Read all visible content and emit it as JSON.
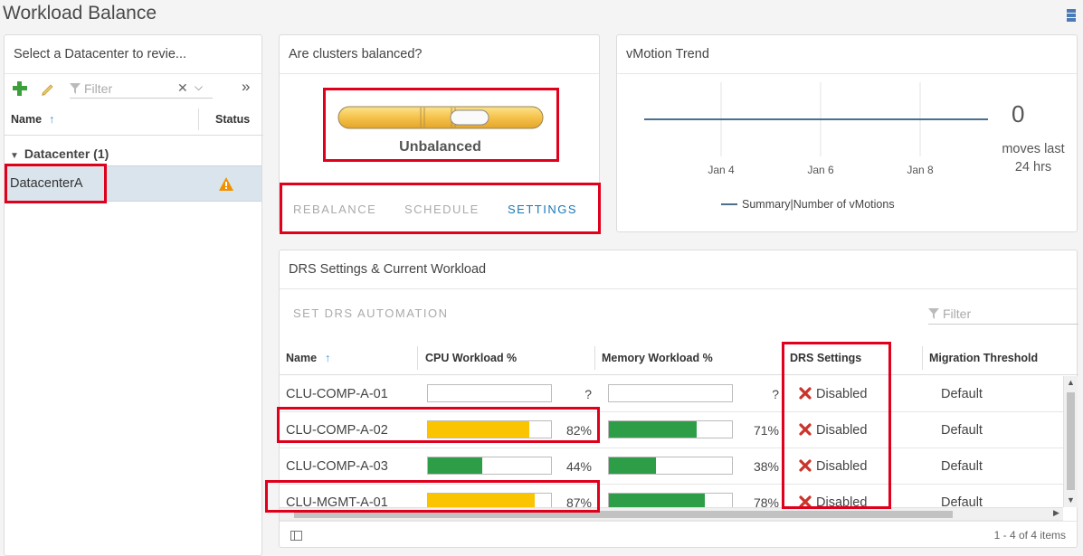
{
  "page": {
    "title": "Workload Balance"
  },
  "left_panel": {
    "header": "Select a Datacenter to revie...",
    "filter_placeholder": "Filter",
    "columns": {
      "name": "Name",
      "status": "Status"
    },
    "group": "Datacenter (1)",
    "row": {
      "name": "DatacenterA",
      "status_icon": "warning-icon"
    }
  },
  "balance_panel": {
    "header": "Are clusters balanced?",
    "status": "Unbalanced",
    "actions": [
      "REBALANCE",
      "SCHEDULE",
      "SETTINGS"
    ],
    "active_action": "SETTINGS",
    "colors": {
      "slider": "#f6c24a",
      "active": "#1a78b5"
    }
  },
  "vmotion_panel": {
    "header": "vMotion Trend",
    "moves_count": "0",
    "moves_text_line1": "moves last",
    "moves_text_line2": "24 hrs",
    "chart_data": {
      "type": "line",
      "x": [
        "Jan 4",
        "Jan 6",
        "Jan 8"
      ],
      "series": [
        {
          "name": "Summary|Number of vMotions",
          "values": [
            0,
            0,
            0
          ]
        }
      ],
      "xticks": [
        "Jan 4",
        "Jan 6",
        "Jan 8"
      ],
      "legend": "bottom",
      "line_color": "#4a6f8f"
    }
  },
  "drs_panel": {
    "header": "DRS Settings & Current Workload",
    "set_automation": "SET DRS AUTOMATION",
    "filter_placeholder": "Filter",
    "columns": {
      "name": "Name",
      "cpu": "CPU Workload %",
      "memory": "Memory Workload %",
      "drs": "DRS Settings",
      "migration": "Migration Threshold"
    },
    "rows": [
      {
        "name": "CLU-COMP-A-01",
        "cpu": null,
        "cpu_label": "?",
        "mem": null,
        "mem_label": "?",
        "drs": "Disabled",
        "migration": "Default"
      },
      {
        "name": "CLU-COMP-A-02",
        "cpu": 82,
        "cpu_label": "82%",
        "mem": 71,
        "mem_label": "71%",
        "drs": "Disabled",
        "migration": "Default"
      },
      {
        "name": "CLU-COMP-A-03",
        "cpu": 44,
        "cpu_label": "44%",
        "mem": 38,
        "mem_label": "38%",
        "drs": "Disabled",
        "migration": "Default"
      },
      {
        "name": "CLU-MGMT-A-01",
        "cpu": 87,
        "cpu_label": "87%",
        "mem": 78,
        "mem_label": "78%",
        "drs": "Disabled",
        "migration": "Default"
      }
    ],
    "footer": "1 - 4 of 4 items",
    "colors": {
      "high": "#fbc400",
      "ok": "#2e9d47",
      "disabled_x": "#c9342b"
    }
  }
}
